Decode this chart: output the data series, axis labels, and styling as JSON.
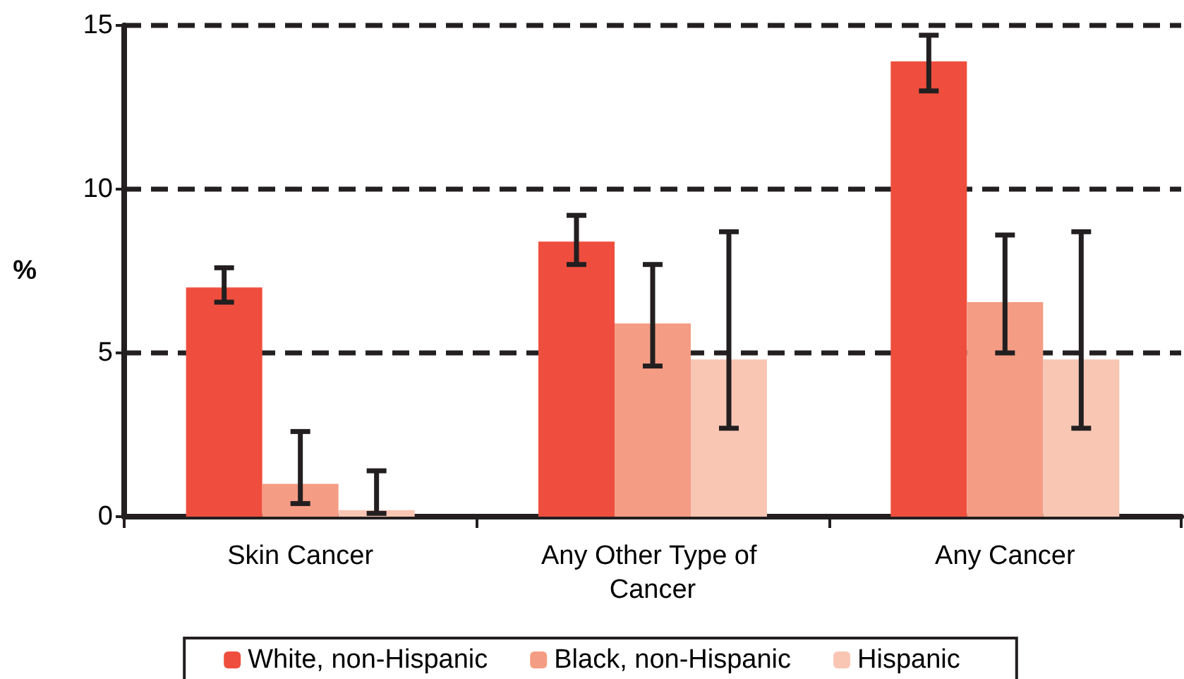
{
  "chart_data": {
    "type": "bar",
    "ylabel": "%",
    "categories": [
      "Skin Cancer",
      "Any Other Type of Cancer",
      "Any Cancer"
    ],
    "series": [
      {
        "name": "White, non-Hispanic",
        "color": "#ef4e3e",
        "values": [
          7.0,
          8.4,
          13.9
        ],
        "errors": [
          [
            6.55,
            7.6
          ],
          [
            7.7,
            9.2
          ],
          [
            13.0,
            14.7
          ]
        ]
      },
      {
        "name": "Black, non-Hispanic",
        "color": "#f59c84",
        "values": [
          1.0,
          5.9,
          6.55
        ],
        "errors": [
          [
            0.4,
            2.6
          ],
          [
            4.6,
            7.7
          ],
          [
            5.0,
            8.6
          ]
        ]
      },
      {
        "name": "Hispanic",
        "color": "#f9c6b4",
        "values": [
          0.2,
          4.8,
          4.8
        ],
        "errors": [
          [
            0.1,
            1.4
          ],
          [
            2.7,
            8.7
          ],
          [
            2.7,
            8.7
          ]
        ]
      }
    ],
    "ylim": [
      0,
      15
    ],
    "yticks": [
      0,
      5,
      10,
      15
    ],
    "grid": "y",
    "legend": "bottom"
  }
}
